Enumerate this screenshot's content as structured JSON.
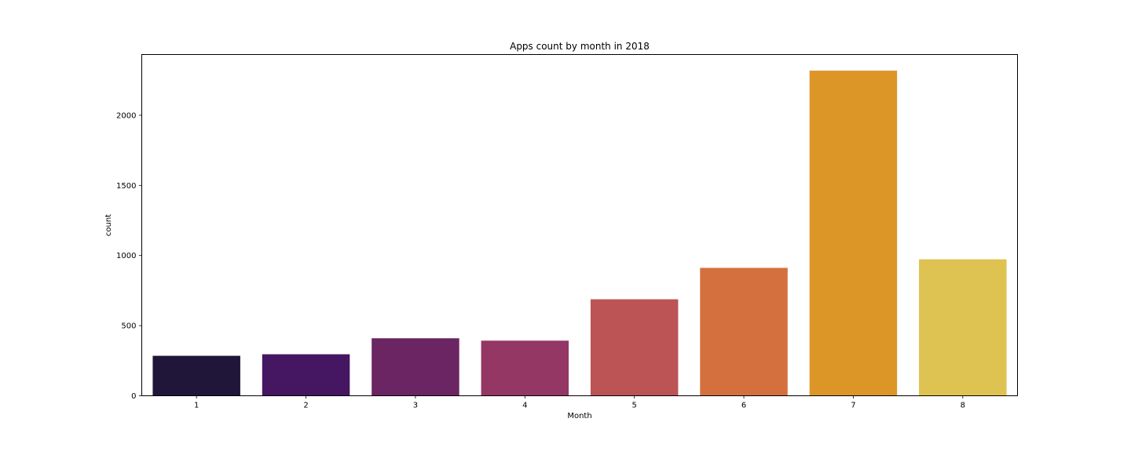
{
  "chart_data": {
    "type": "bar",
    "title": "Apps count by month in 2018",
    "xlabel": "Month",
    "ylabel": "count",
    "categories": [
      "1",
      "2",
      "3",
      "4",
      "5",
      "6",
      "7",
      "8"
    ],
    "values": [
      285,
      296,
      410,
      393,
      688,
      912,
      2318,
      973
    ],
    "colors": [
      "#1f1639",
      "#451661",
      "#6b2562",
      "#943764",
      "#bc5355",
      "#d4703d",
      "#dc9527",
      "#dfc352"
    ],
    "ylim": [
      0,
      2433
    ],
    "yticks": [
      0,
      500,
      1000,
      1500,
      2000
    ],
    "grid": false,
    "legend": false
  }
}
